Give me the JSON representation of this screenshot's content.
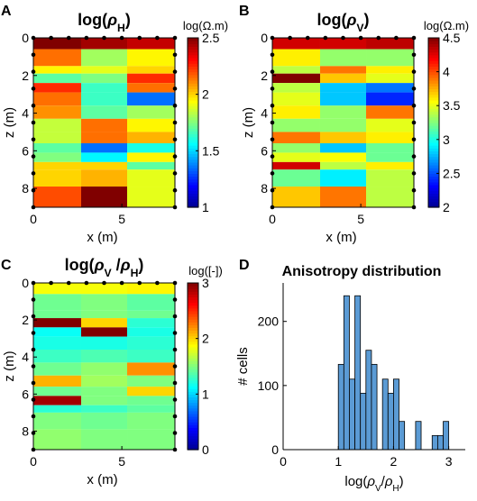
{
  "chart_data": [
    {
      "panel": "A",
      "type": "heatmap",
      "title_main": "log(",
      "title_greek": "ρ",
      "title_sub": "H",
      "title_close": ")",
      "xlabel": "x (m)",
      "ylabel": "z (m)",
      "x_ticks": [
        "0",
        "5"
      ],
      "y_ticks": [
        "0",
        "2",
        "4",
        "6",
        "8"
      ],
      "colorbar_label": "log(Ω.m)",
      "colorbar_ticks": [
        "1",
        "1.5",
        "2",
        "2.5"
      ],
      "colorbar_range": [
        1,
        2.5
      ],
      "xlim": [
        0,
        8
      ],
      "ylim": [
        0,
        9
      ],
      "x_edges": [
        0,
        2.7,
        5.3,
        8
      ],
      "z_edges": [
        0,
        0.6,
        1.5,
        1.9,
        2.4,
        2.9,
        3.6,
        4.3,
        5.0,
        5.6,
        6.1,
        6.6,
        7.0,
        7.9,
        9.0
      ],
      "values": [
        [
          2.5,
          2.45,
          2.4
        ],
        [
          2.15,
          1.8,
          1.95
        ],
        [
          1.95,
          1.9,
          2.0
        ],
        [
          1.7,
          1.75,
          2.25
        ],
        [
          2.25,
          1.65,
          2.15
        ],
        [
          2.15,
          1.65,
          1.35
        ],
        [
          2.1,
          1.7,
          1.8
        ],
        [
          1.85,
          2.15,
          1.95
        ],
        [
          1.85,
          2.15,
          2.05
        ],
        [
          1.7,
          1.35,
          1.6
        ],
        [
          1.75,
          1.55,
          1.95
        ],
        [
          2.0,
          2.0,
          1.7
        ],
        [
          2.0,
          2.05,
          1.9
        ],
        [
          2.2,
          2.65,
          1.9
        ]
      ]
    },
    {
      "panel": "B",
      "type": "heatmap",
      "title_main": "log(",
      "title_greek": "ρ",
      "title_sub": "V",
      "title_close": ")",
      "xlabel": "x (m)",
      "ylabel": "z (m)",
      "x_ticks": [
        "0",
        "5"
      ],
      "y_ticks": [
        "0",
        "2",
        "4",
        "6",
        "8"
      ],
      "colorbar_label": "log(Ω.m)",
      "colorbar_ticks": [
        "2",
        "2.5",
        "3",
        "3.5",
        "4",
        "4.5"
      ],
      "colorbar_range": [
        2,
        4.5
      ],
      "xlim": [
        0,
        8
      ],
      "ylim": [
        0,
        9
      ],
      "x_edges": [
        0,
        2.7,
        5.3,
        8
      ],
      "z_edges": [
        0,
        0.6,
        1.5,
        1.9,
        2.4,
        2.9,
        3.6,
        4.3,
        5.0,
        5.6,
        6.1,
        6.6,
        7.0,
        7.9,
        9.0
      ],
      "values": [
        [
          4.3,
          4.3,
          4.35
        ],
        [
          3.6,
          3.3,
          3.3
        ],
        [
          3.4,
          3.9,
          3.6
        ],
        [
          4.7,
          3.7,
          3.5
        ],
        [
          3.4,
          2.8,
          2.6
        ],
        [
          3.5,
          2.8,
          2.4
        ],
        [
          3.6,
          3.3,
          3.9
        ],
        [
          3.3,
          3.3,
          3.5
        ],
        [
          3.9,
          3.7,
          3.6
        ],
        [
          3.3,
          2.8,
          3.2
        ],
        [
          3.5,
          3.55,
          3.2
        ],
        [
          4.3,
          3.4,
          3.6
        ],
        [
          3.2,
          2.9,
          3.4
        ],
        [
          3.7,
          3.9,
          3.4
        ]
      ]
    },
    {
      "panel": "C",
      "type": "heatmap",
      "title_main": "log(",
      "title_greek": "ρ",
      "title_sub": "V",
      "title_slash": " /",
      "title_greek2": "ρ",
      "title_sub2": "H",
      "title_close": ")",
      "xlabel": "x (m)",
      "ylabel": "z (m)",
      "x_ticks": [
        "0",
        "5"
      ],
      "y_ticks": [
        "0",
        "2",
        "4",
        "6",
        "8"
      ],
      "colorbar_label": "log([-])",
      "colorbar_ticks": [
        "0",
        "1",
        "2",
        "3"
      ],
      "colorbar_range": [
        0,
        3
      ],
      "xlim": [
        0,
        8
      ],
      "ylim": [
        0,
        9
      ],
      "x_edges": [
        0,
        2.7,
        5.3,
        8
      ],
      "z_edges": [
        0,
        0.6,
        1.5,
        1.9,
        2.4,
        2.9,
        3.6,
        4.3,
        5.0,
        5.6,
        6.1,
        6.6,
        7.0,
        7.9,
        9.0
      ],
      "values": [
        [
          1.85,
          1.85,
          1.9
        ],
        [
          1.45,
          1.5,
          1.4
        ],
        [
          1.45,
          1.5,
          1.45
        ],
        [
          3.0,
          2.0,
          1.25
        ],
        [
          1.15,
          3.0,
          1.2
        ],
        [
          1.2,
          1.2,
          1.25
        ],
        [
          1.3,
          1.35,
          1.3
        ],
        [
          1.45,
          1.55,
          2.2
        ],
        [
          2.1,
          1.6,
          1.5
        ],
        [
          1.45,
          1.5,
          2.0
        ],
        [
          2.9,
          1.5,
          1.45
        ],
        [
          1.25,
          1.3,
          1.4
        ],
        [
          1.5,
          1.45,
          1.5
        ],
        [
          1.55,
          1.5,
          1.5
        ]
      ]
    },
    {
      "panel": "D",
      "type": "bar",
      "title": "Anisotropy distribution",
      "xlabel_main": "log(",
      "xlabel_greek": "ρ",
      "xlabel_sub": "V",
      "xlabel_slash": "/",
      "xlabel_greek2": "ρ",
      "xlabel_sub2": "H",
      "xlabel_close": ")",
      "ylabel": "# cells",
      "x_ticks": [
        "0",
        "1",
        "2",
        "3"
      ],
      "y_ticks": [
        "0",
        "100",
        "200"
      ],
      "xlim": [
        0,
        3.3
      ],
      "ylim": [
        0,
        260
      ],
      "bin_width": 0.1,
      "bins": [
        {
          "x0": 1.0,
          "count": 133
        },
        {
          "x0": 1.1,
          "count": 240
        },
        {
          "x0": 1.2,
          "count": 110
        },
        {
          "x0": 1.3,
          "count": 240
        },
        {
          "x0": 1.4,
          "count": 88
        },
        {
          "x0": 1.5,
          "count": 155
        },
        {
          "x0": 1.6,
          "count": 133
        },
        {
          "x0": 1.8,
          "count": 110
        },
        {
          "x0": 1.9,
          "count": 88
        },
        {
          "x0": 2.0,
          "count": 110
        },
        {
          "x0": 2.1,
          "count": 44
        },
        {
          "x0": 2.4,
          "count": 44
        },
        {
          "x0": 2.7,
          "count": 22
        },
        {
          "x0": 2.8,
          "count": 22
        },
        {
          "x0": 2.9,
          "count": 44
        }
      ],
      "bar_color": "#5b9bd5"
    }
  ],
  "panel_letters": [
    "A",
    "B",
    "C",
    "D"
  ]
}
